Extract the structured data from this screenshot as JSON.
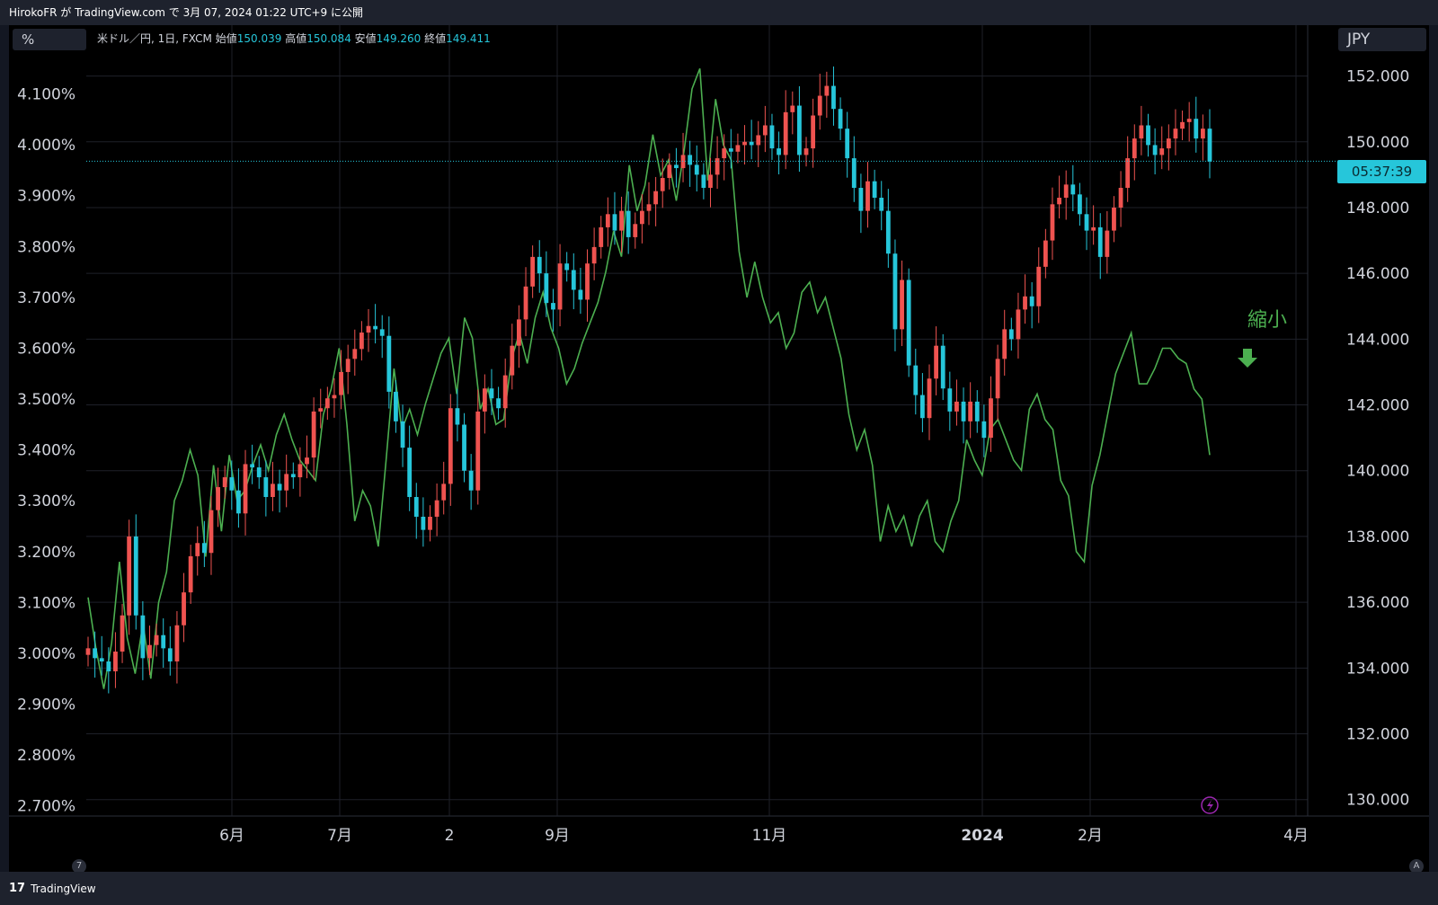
{
  "header": {
    "publish_info": "HirokoFR が TradingView.com で 3月 07, 2024 01:22 UTC+9 に公開"
  },
  "footer": {
    "brand": "TradingView",
    "brand_mark": "17"
  },
  "chart": {
    "unit_label": "%",
    "currency_label": "JPY",
    "legend": {
      "symbol": "米ドル／円, 1日, FXCM",
      "open_label": "始値",
      "open": "150.039",
      "high_label": "高値",
      "high": "150.084",
      "low_label": "安値",
      "low": "149.260",
      "close_label": "終値",
      "close": "149.411"
    },
    "countdown": "05:37:39",
    "annotation_text": "縮小",
    "corner_left": "7",
    "corner_right": "A",
    "colors": {
      "up": "#ef5350",
      "down": "#26c6da",
      "line": "#4caf50",
      "background": "#000000",
      "grid": "#1e2029",
      "price_line": "#26c6da"
    }
  },
  "chart_data": {
    "type": "line",
    "title": "",
    "x_labels": [
      "6月",
      "7月",
      "2",
      "9月",
      "11月",
      "2024",
      "2月",
      "4月"
    ],
    "left_axis": {
      "ticks": [
        "4.100%",
        "4.000%",
        "3.900%",
        "3.800%",
        "3.700%",
        "3.600%",
        "3.500%",
        "3.400%",
        "3.300%",
        "3.200%",
        "3.100%",
        "3.000%",
        "2.900%",
        "2.800%",
        "2.700%"
      ],
      "range": [
        2.68,
        4.2
      ]
    },
    "right_axis": {
      "ticks": [
        "152.000",
        "150.000",
        "148.000",
        "146.000",
        "144.000",
        "142.000",
        "140.000",
        "138.000",
        "136.000",
        "134.000",
        "132.000",
        "130.000"
      ],
      "range": [
        129.5,
        153.0
      ]
    },
    "current_price": 149.411,
    "series": [
      {
        "type": "candlestick",
        "points_close": [
          134.6,
          134.3,
          134.2,
          133.9,
          134.5,
          135.6,
          138.0,
          135.6,
          134.3,
          134.7,
          135.0,
          134.6,
          134.2,
          135.3,
          136.3,
          137.4,
          137.8,
          137.5,
          138.8,
          139.5,
          139.8,
          139.4,
          138.7,
          140.2,
          140.1,
          139.8,
          139.2,
          139.6,
          139.4,
          139.9,
          139.8,
          140.2,
          140.4,
          141.8,
          141.9,
          142.2,
          142.3,
          143.0,
          143.4,
          143.7,
          144.2,
          144.4,
          144.3,
          144.1,
          142.4,
          141.5,
          140.7,
          139.2,
          138.6,
          138.2,
          138.6,
          139.1,
          139.6,
          141.9,
          141.4,
          140.0,
          139.4,
          141.8,
          142.5,
          142.2,
          141.9,
          142.9,
          143.8,
          144.6,
          145.6,
          146.5,
          146.0,
          145.1,
          144.9,
          146.3,
          146.1,
          145.5,
          145.2,
          146.3,
          146.8,
          147.4,
          147.8,
          147.3,
          147.9,
          147.1,
          147.5,
          147.9,
          148.1,
          148.5,
          148.9,
          149.3,
          149.2,
          149.6,
          149.3,
          149.0,
          148.6,
          149.0,
          149.5,
          149.8,
          149.7,
          149.9,
          150.0,
          149.9,
          150.2,
          150.5,
          149.8,
          149.6,
          150.9,
          151.1,
          149.6,
          149.8,
          150.8,
          151.4,
          151.7,
          151.0,
          150.4,
          149.5,
          148.6,
          147.9,
          148.8,
          148.3,
          147.9,
          146.6,
          144.3,
          145.8,
          143.2,
          142.3,
          141.6,
          142.8,
          143.8,
          142.5,
          141.8,
          142.1,
          141.5,
          142.1,
          141.5,
          141.0,
          142.2,
          143.4,
          144.3,
          144.0,
          144.9,
          145.3,
          145.0,
          146.2,
          147.0,
          148.1,
          148.3,
          148.7,
          148.4,
          147.8,
          147.3,
          147.4,
          146.5,
          147.3,
          148.0,
          148.6,
          149.5,
          150.1,
          150.5,
          149.9,
          149.6,
          149.8,
          150.1,
          150.4,
          150.6,
          150.7,
          150.1,
          150.4,
          149.4
        ]
      },
      {
        "type": "line",
        "name": "",
        "points": [
          3.11,
          3.01,
          2.93,
          3.02,
          3.18,
          3.03,
          2.96,
          3.06,
          2.95,
          3.1,
          3.16,
          3.3,
          3.34,
          3.4,
          3.35,
          3.19,
          3.37,
          3.24,
          3.39,
          3.3,
          3.32,
          3.37,
          3.41,
          3.36,
          3.43,
          3.47,
          3.42,
          3.38,
          3.36,
          3.34,
          3.47,
          3.52,
          3.6,
          3.45,
          3.26,
          3.32,
          3.29,
          3.21,
          3.38,
          3.56,
          3.44,
          3.48,
          3.43,
          3.49,
          3.54,
          3.59,
          3.62,
          3.51,
          3.66,
          3.62,
          3.48,
          3.52,
          3.45,
          3.46,
          3.58,
          3.63,
          3.57,
          3.66,
          3.71,
          3.64,
          3.6,
          3.53,
          3.56,
          3.61,
          3.65,
          3.69,
          3.75,
          3.83,
          3.78,
          3.96,
          3.87,
          3.92,
          4.02,
          3.94,
          3.97,
          3.89,
          3.99,
          4.11,
          4.15,
          3.93,
          4.09,
          4.0,
          3.97,
          3.79,
          3.7,
          3.77,
          3.7,
          3.65,
          3.67,
          3.6,
          3.63,
          3.71,
          3.73,
          3.67,
          3.7,
          3.64,
          3.58,
          3.47,
          3.4,
          3.44,
          3.37,
          3.22,
          3.29,
          3.24,
          3.27,
          3.21,
          3.27,
          3.3,
          3.22,
          3.2,
          3.26,
          3.3,
          3.42,
          3.38,
          3.35,
          3.44,
          3.46,
          3.42,
          3.38,
          3.36,
          3.48,
          3.51,
          3.46,
          3.44,
          3.34,
          3.31,
          3.2,
          3.18,
          3.33,
          3.39,
          3.47,
          3.55,
          3.59,
          3.63,
          3.53,
          3.53,
          3.56,
          3.6,
          3.6,
          3.58,
          3.57,
          3.52,
          3.5,
          3.39
        ]
      }
    ]
  }
}
